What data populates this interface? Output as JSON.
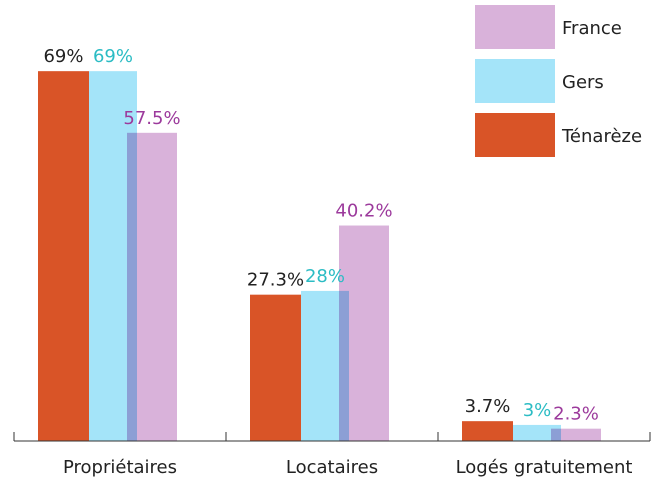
{
  "chart_data": {
    "type": "bar",
    "categories": [
      "Propriétaires",
      "Locataires",
      "Logés gratuitement"
    ],
    "series": [
      {
        "name": "Ténarèze",
        "color": "#d95427",
        "label_color": "#222222",
        "values": [
          69,
          27.3,
          3.7
        ],
        "value_labels": [
          "69%",
          "27.3%",
          "3.7%"
        ]
      },
      {
        "name": "Gers",
        "color": "#a4e4f9",
        "label_color": "#2bbcc4",
        "values": [
          69,
          28,
          3
        ],
        "value_labels": [
          "69%",
          "28%",
          "3%"
        ]
      },
      {
        "name": "France",
        "color": "#d9b2da",
        "label_color": "#9c3a9c",
        "values": [
          57.5,
          40.2,
          2.3
        ],
        "value_labels": [
          "57.5%",
          "40.2%",
          "2.3%"
        ]
      }
    ],
    "ylim": [
      0,
      75
    ],
    "legend": "top-right"
  }
}
